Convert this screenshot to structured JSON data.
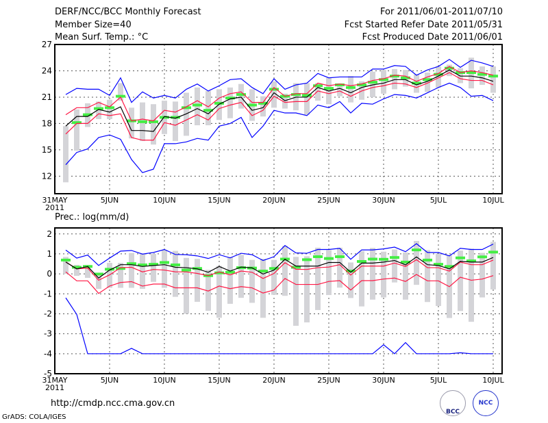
{
  "header": {
    "title": "DERF/NCC/BCC Monthly Forecast",
    "member_size": "Member Size=40",
    "variable": "Mean Surf. Temp.: °C",
    "period": "For 2011/06/01-2011/07/10",
    "started": "Fcst Started Refer Date 2011/05/31",
    "produced": "Fcst Produced Date 2011/06/01"
  },
  "footer": {
    "url": "http://cmdp.ncc.cma.gov.cn",
    "grads": "GrADS: COLA/IGES",
    "logo_bcc": "BCC",
    "logo_ncc": "NCC"
  },
  "colors": {
    "max_min": "#0000ff",
    "spread": "#ff1744",
    "mean": "#000000",
    "obs": "#44ee44",
    "range": "#d4d4d8"
  },
  "chart_data": [
    {
      "type": "line",
      "title": "Mean Surf. Temp.: °C",
      "x": "days since 31 MAY 2011 (1..40)",
      "xticks": [
        {
          "day": 0,
          "label": "31MAY",
          "sub": "2011"
        },
        {
          "day": 5,
          "label": "5JUN"
        },
        {
          "day": 10,
          "label": "10JUN"
        },
        {
          "day": 15,
          "label": "15JUN"
        },
        {
          "day": 20,
          "label": "20JUN"
        },
        {
          "day": 25,
          "label": "25JUN"
        },
        {
          "day": 30,
          "label": "30JUN"
        },
        {
          "day": 35,
          "label": "5JUL"
        },
        {
          "day": 40,
          "label": "10JUL"
        }
      ],
      "yticks": [
        12,
        15,
        18,
        21,
        24,
        27
      ],
      "ylim": [
        10,
        27
      ],
      "grid": true,
      "series": {
        "max": [
          21.3,
          22,
          21.9,
          21.9,
          21.2,
          23.2,
          20.4,
          21.6,
          20.9,
          21.2,
          20.9,
          21.9,
          22.5,
          21.7,
          22.3,
          23,
          23.1,
          22.1,
          21.4,
          23.1,
          21.9,
          22.4,
          22.6,
          23.7,
          23.2,
          23.3,
          23.3,
          23.3,
          24.2,
          24.2,
          24.6,
          24.5,
          23.5,
          24.1,
          24.5,
          25.3,
          24.4,
          25.2,
          24.9,
          24.5
        ],
        "upper": [
          19,
          19.8,
          19.8,
          20.4,
          19.9,
          21,
          18.3,
          18.5,
          18.3,
          19.5,
          19.3,
          19.9,
          20.6,
          19.9,
          20.9,
          21.4,
          21.6,
          20.4,
          20.4,
          22.1,
          21.1,
          21.4,
          21.4,
          22.6,
          22.3,
          22.5,
          22.3,
          22.5,
          22.9,
          23.1,
          23.5,
          23.4,
          22.8,
          23.3,
          23.7,
          24.5,
          23.8,
          24,
          23.8,
          23.5
        ],
        "mean": [
          17.7,
          18.8,
          18.8,
          19.6,
          19.3,
          19.9,
          17.2,
          17.2,
          17.1,
          18.8,
          18.6,
          19.1,
          19.7,
          19.1,
          20.2,
          20.8,
          21,
          19.5,
          19.8,
          21.5,
          20.6,
          21,
          21,
          22.1,
          21.7,
          22,
          21.5,
          22.1,
          22.4,
          22.6,
          23,
          23,
          22.4,
          22.8,
          23.4,
          24.1,
          23.4,
          23.4,
          23.2,
          22.8
        ],
        "lower": [
          16.8,
          18,
          18,
          19.1,
          18.9,
          19.1,
          16.4,
          16.1,
          16.1,
          18.1,
          17.8,
          18.4,
          19,
          18.4,
          19.7,
          20.1,
          20.4,
          18.9,
          19.5,
          21.1,
          20.4,
          20.5,
          20.5,
          21.7,
          21.4,
          21.7,
          21.1,
          21.7,
          22.1,
          22.3,
          22.6,
          22.5,
          22.1,
          22.6,
          23.2,
          23.8,
          23.1,
          22.9,
          22.9,
          22.4
        ],
        "min": [
          13.3,
          14.7,
          15.1,
          16.4,
          16.7,
          16.2,
          13.9,
          12.4,
          12.8,
          15.7,
          15.7,
          15.9,
          16.3,
          16.1,
          17.7,
          18,
          18.7,
          16.4,
          17.7,
          19.5,
          19.2,
          19.2,
          18.9,
          20.1,
          19.8,
          20.5,
          19.2,
          20.3,
          20.2,
          20.8,
          21.3,
          21.2,
          20.9,
          21.5,
          22.1,
          22.6,
          22.1,
          21.1,
          21.2,
          20.6
        ],
        "obs": [
          null,
          18.1,
          19,
          19.7,
          19.8,
          21.1,
          18.3,
          18.2,
          18.2,
          18.7,
          18.7,
          19.8,
          20.1,
          19.5,
          20.3,
          20.9,
          21.3,
          20.1,
          20.3,
          21.9,
          21.1,
          21.3,
          21.2,
          22.3,
          22,
          22.4,
          22.1,
          22.4,
          22.7,
          23,
          23.4,
          23.2,
          22.6,
          23,
          23.6,
          24.3,
          23.8,
          23.8,
          23.6,
          23.4
        ],
        "range_lo": [
          11.3,
          14.9,
          17.6,
          18.5,
          18.5,
          20.6,
          16.3,
          16,
          15.6,
          16.8,
          16,
          16.6,
          17.8,
          17.8,
          18.4,
          18.6,
          19.7,
          18.3,
          18.8,
          19.8,
          19.7,
          19.5,
          19,
          20.6,
          20.2,
          21.1,
          20.4,
          20.7,
          21,
          21.4,
          21.9,
          22.2,
          21.5,
          21.6,
          22.1,
          23.4,
          22.6,
          22,
          22.4,
          21.5
        ],
        "range_hi": [
          17.7,
          19.6,
          20.3,
          20.5,
          20.7,
          22.6,
          19.8,
          20.4,
          20.2,
          20.6,
          20.5,
          21.5,
          22.1,
          21.7,
          21.9,
          22.1,
          22.5,
          21.9,
          21.1,
          22.8,
          21.4,
          22.6,
          22.6,
          22.6,
          23.2,
          22.5,
          23.4,
          22.8,
          23.9,
          24.1,
          24.2,
          24.1,
          23.6,
          23.8,
          24.5,
          24.7,
          24.3,
          25.5,
          24.5,
          24.5
        ]
      }
    },
    {
      "type": "line",
      "title": "Prec.: log(mm/d)",
      "xticks": [
        {
          "day": 0,
          "label": "31MAY",
          "sub": "2011"
        },
        {
          "day": 5,
          "label": "5JUN"
        },
        {
          "day": 10,
          "label": "10JUN"
        },
        {
          "day": 15,
          "label": "15JUN"
        },
        {
          "day": 20,
          "label": "20JUN"
        },
        {
          "day": 25,
          "label": "25JUN"
        },
        {
          "day": 30,
          "label": "30JUN"
        },
        {
          "day": 35,
          "label": "5JUL"
        },
        {
          "day": 40,
          "label": "10JUL"
        }
      ],
      "yticks": [
        -5,
        -4,
        -3,
        -2,
        -1,
        0,
        1,
        2
      ],
      "ylim": [
        -5,
        2.3
      ],
      "grid": true,
      "series": {
        "max": [
          1.19,
          0.79,
          0.94,
          0.42,
          0.79,
          1.14,
          1.17,
          0.99,
          1.07,
          1.22,
          0.97,
          0.96,
          0.9,
          0.77,
          0.96,
          0.8,
          1.03,
          0.96,
          0.67,
          0.86,
          1.42,
          1.05,
          1.03,
          1.22,
          1.22,
          1.28,
          0.73,
          1.2,
          1.2,
          1.25,
          1.34,
          1.11,
          1.51,
          1.07,
          1.07,
          0.9,
          1.28,
          1.22,
          1.22,
          1.49
        ],
        "upper": [
          0.6,
          0.25,
          0.29,
          -0.32,
          -0.05,
          0.31,
          0.33,
          0.1,
          0.22,
          0.19,
          0.1,
          0.1,
          0.02,
          -0.09,
          0.1,
          -0.05,
          0.14,
          0.08,
          -0.23,
          0.02,
          0.56,
          0.23,
          0.22,
          0.31,
          0.34,
          0.46,
          -0.06,
          0.39,
          0.39,
          0.39,
          0.54,
          0.37,
          0.71,
          0.31,
          0.31,
          0.14,
          0.59,
          0.46,
          0.46,
          0.69
        ],
        "mean": [
          0.59,
          0.25,
          0.37,
          -0.21,
          0.19,
          0.46,
          0.46,
          0.37,
          0.42,
          0.46,
          0.33,
          0.31,
          0.25,
          0.08,
          0.37,
          0.14,
          0.34,
          0.3,
          -0.01,
          0.19,
          0.73,
          0.39,
          0.39,
          0.39,
          0.57,
          0.57,
          0.08,
          0.54,
          0.54,
          0.59,
          0.67,
          0.45,
          0.85,
          0.46,
          0.42,
          0.25,
          0.63,
          0.59,
          0.59,
          0.82
        ],
        "lower": [
          0.1,
          -0.35,
          -0.35,
          -0.98,
          -0.61,
          -0.43,
          -0.39,
          -0.61,
          -0.51,
          -0.51,
          -0.7,
          -0.7,
          -0.7,
          -0.86,
          -0.61,
          -0.74,
          -0.64,
          -0.7,
          -0.96,
          -0.81,
          -0.23,
          -0.53,
          -0.53,
          -0.53,
          -0.38,
          -0.34,
          -0.81,
          -0.34,
          -0.34,
          -0.26,
          -0.21,
          -0.38,
          -0.03,
          -0.35,
          -0.35,
          -0.64,
          -0.17,
          -0.32,
          -0.26,
          -0.09
        ],
        "min": [
          -1.2,
          -2.03,
          -4,
          -4,
          -4,
          -4,
          -3.73,
          -4,
          -4,
          -4,
          -4,
          -4,
          -4,
          -4,
          -4,
          -4,
          -4,
          -4,
          -4,
          -4,
          -4,
          -4,
          -4,
          -4,
          -4,
          -4,
          -4,
          -4,
          -4,
          -3.55,
          -4,
          -3.44,
          -4,
          -4,
          -4,
          -4,
          -3.95,
          -4,
          -4,
          -4
        ],
        "obs": [
          0.69,
          0.33,
          0.37,
          -0.01,
          0.23,
          0.27,
          0.51,
          0.45,
          0.48,
          0.57,
          0.45,
          0.19,
          0.27,
          -0.09,
          0.05,
          0.08,
          0.31,
          0.29,
          0.14,
          0.27,
          0.74,
          0.33,
          0.71,
          0.86,
          0.77,
          0.86,
          0.14,
          0.62,
          0.74,
          0.73,
          0.82,
          0.59,
          1.2,
          0.69,
          0.48,
          0.37,
          0.8,
          0.65,
          0.85,
          1.09
        ],
        "range_lo": [
          0,
          -0.1,
          -0.2,
          -0.75,
          -0.7,
          -0.7,
          -0.7,
          -0.75,
          -0.4,
          -0.7,
          -1.15,
          -2,
          -1.4,
          -1.85,
          -2.2,
          -1.5,
          -1.2,
          -1.45,
          -2.2,
          -1.05,
          -1.1,
          -2.6,
          -2.43,
          -1.81,
          -1.06,
          -0.69,
          -1.21,
          -1.63,
          -1.29,
          -1.18,
          -0.43,
          -1.29,
          -0.55,
          -1.41,
          -1.61,
          -2.21,
          -1.86,
          -2.4,
          -1.18,
          -0.78
        ],
        "range_hi": [
          0.85,
          0.45,
          0.45,
          0.05,
          0.55,
          0.55,
          1.05,
          1,
          1,
          1.2,
          1.15,
          0.8,
          0.75,
          0.2,
          0.4,
          0.85,
          0.95,
          0.7,
          0.75,
          0.7,
          1.4,
          0.85,
          0.88,
          1.31,
          1.19,
          1.31,
          0.57,
          1.14,
          1.3,
          1.11,
          1.22,
          1.07,
          1.65,
          1.19,
          1,
          0.94,
          1.17,
          1.26,
          1.05,
          1.6
        ]
      }
    }
  ]
}
